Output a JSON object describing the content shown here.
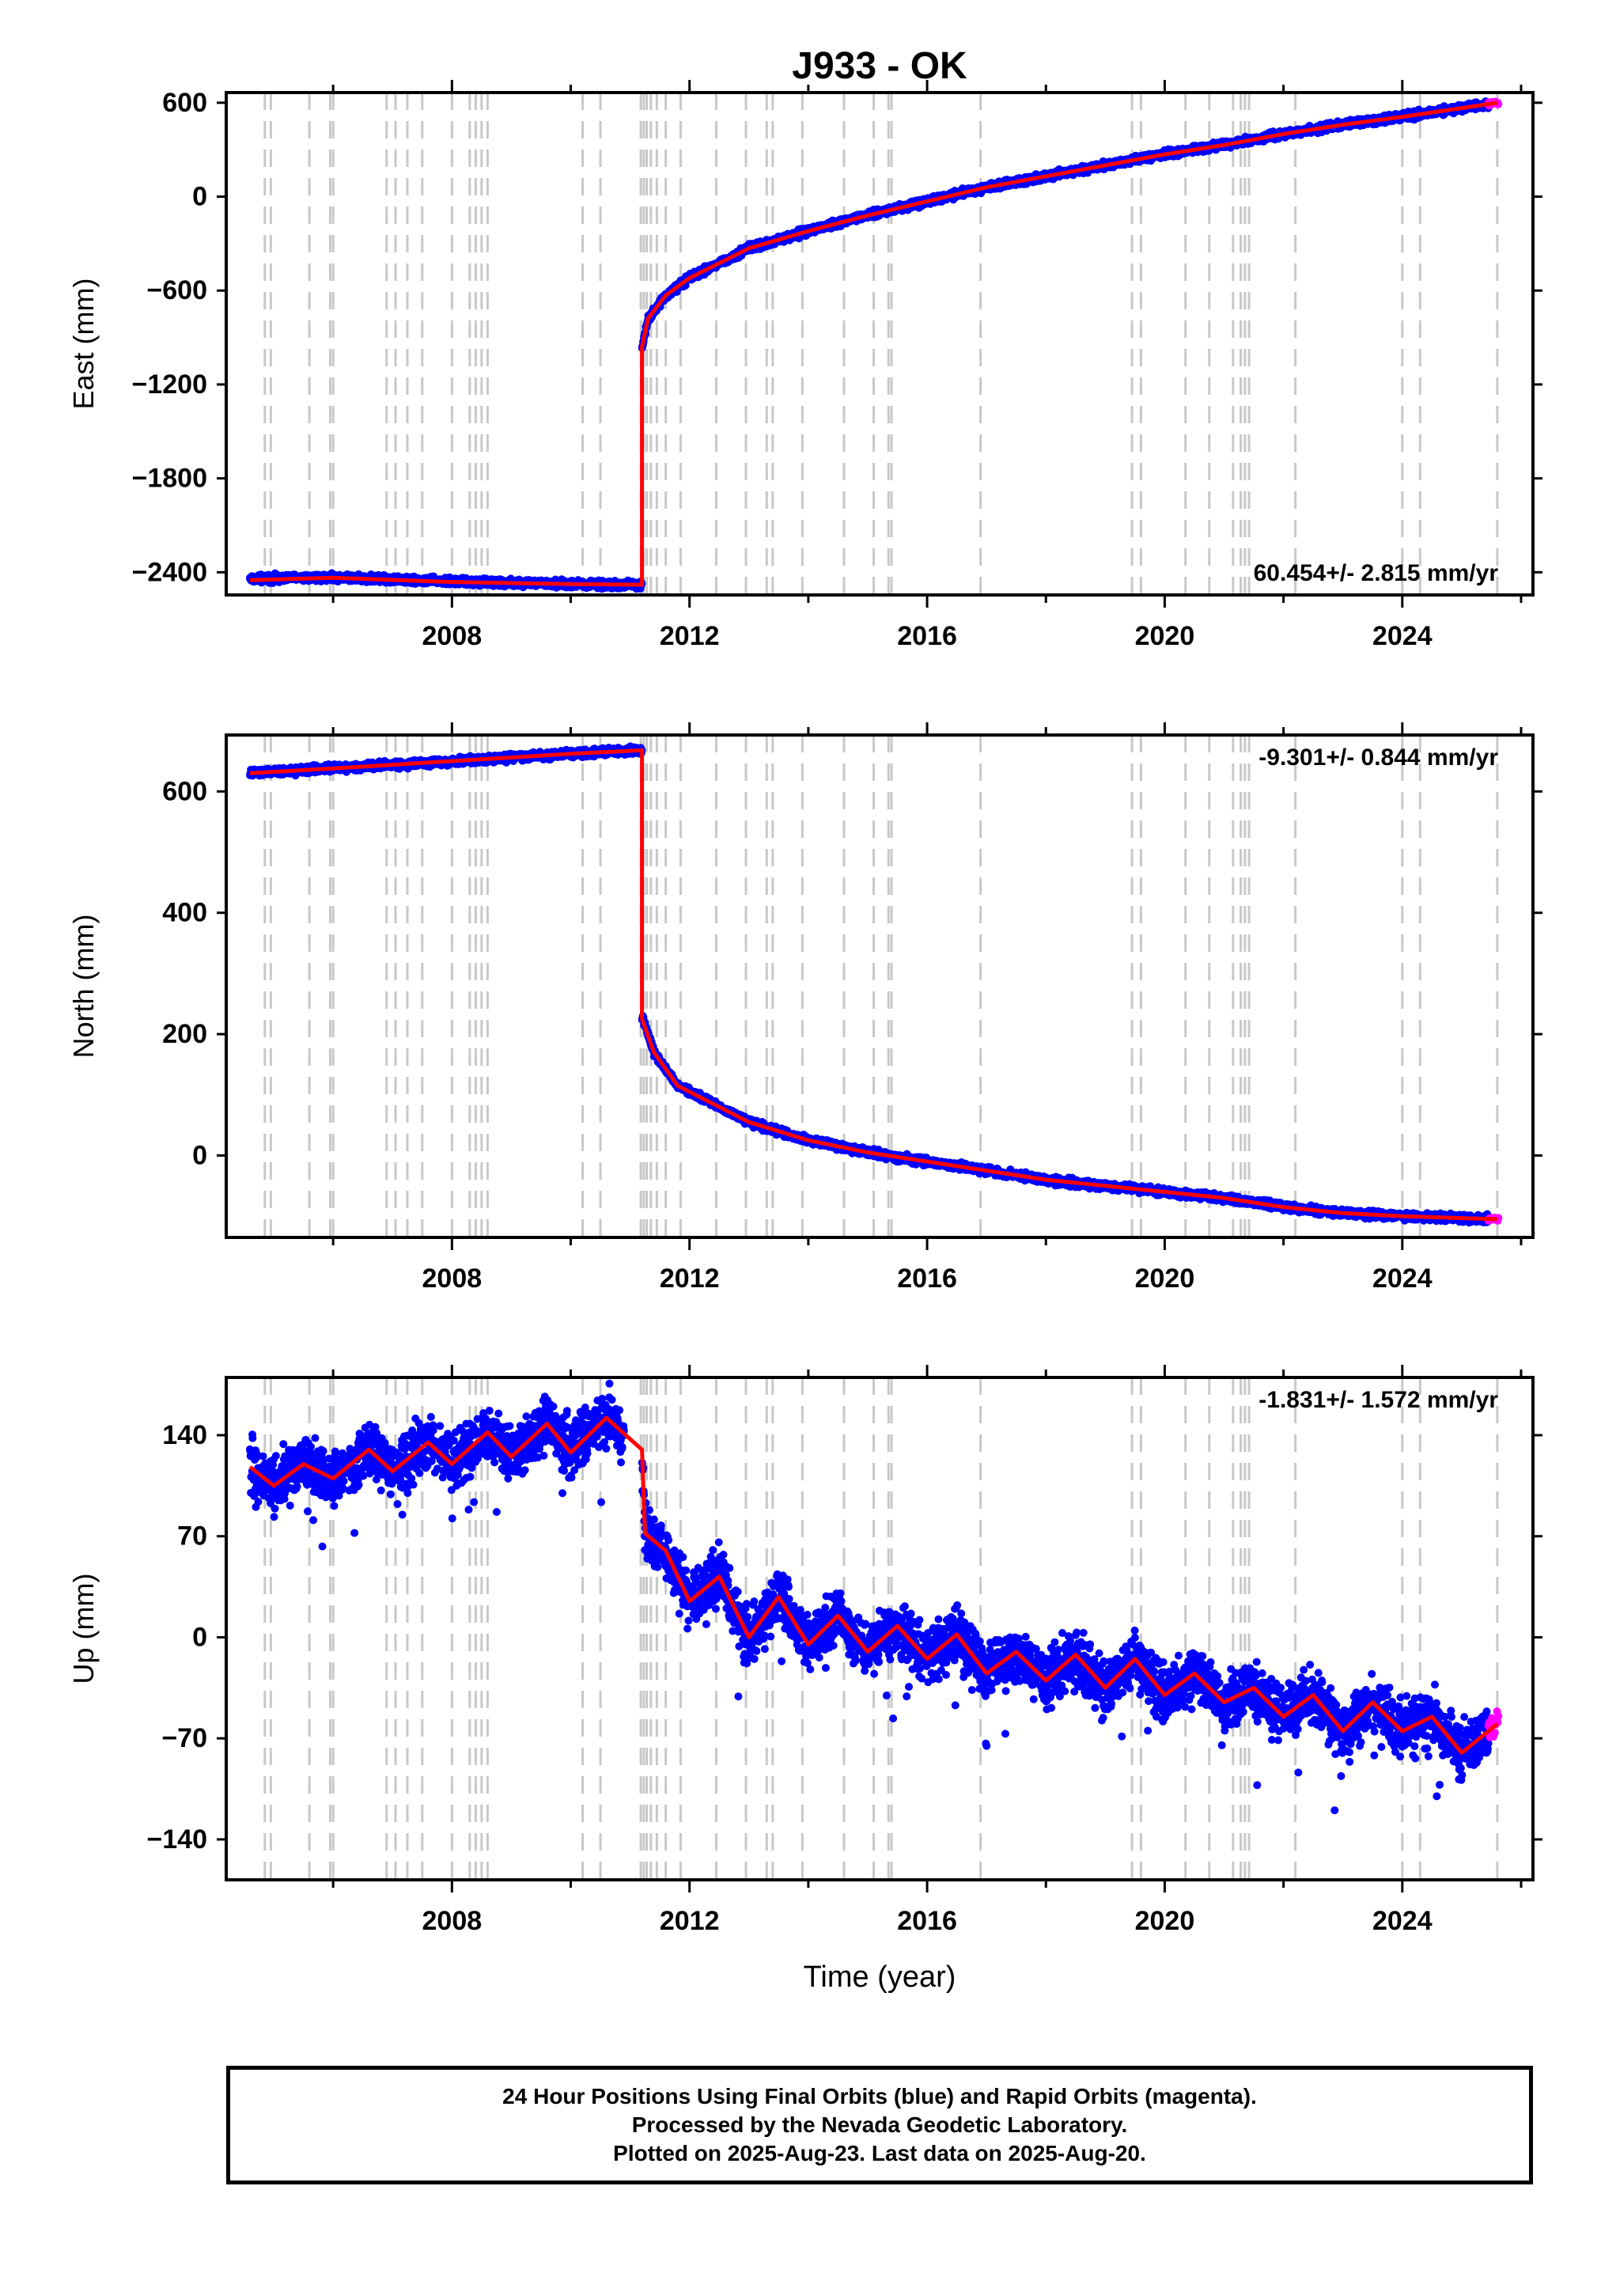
{
  "chart_data": [
    {
      "type": "scatter",
      "title": "J933 - OK",
      "xlabel": "",
      "ylabel": "East (mm)",
      "xlim": [
        2004.2,
        2026.2
      ],
      "ylim": [
        -2545,
        665
      ],
      "x_ticks": [
        "2008",
        "2012",
        "2016",
        "2020",
        "2024"
      ],
      "y_ticks": [
        "600",
        "0",
        "−600",
        "−1200",
        "−1800",
        "−2400"
      ],
      "y_tick_values": [
        600,
        0,
        -600,
        -1200,
        -1800,
        -2400
      ],
      "annotation": "60.454+/- 2.815 mm/yr",
      "series": [
        {
          "values": [
            [
              2004.6,
              -2440
            ],
            [
              2006.0,
              -2430
            ],
            [
              2008.0,
              -2460
            ],
            [
              2010.0,
              -2475
            ],
            [
              2011.2,
              -2480
            ],
            [
              2011.2,
              -970
            ],
            [
              2011.3,
              -780
            ],
            [
              2011.6,
              -630
            ],
            [
              2012.0,
              -520
            ],
            [
              2013.0,
              -330
            ],
            [
              2014.0,
              -220
            ],
            [
              2015.0,
              -120
            ],
            [
              2016.0,
              -30
            ],
            [
              2017.0,
              60
            ],
            [
              2018.0,
              130
            ],
            [
              2019.0,
              200
            ],
            [
              2020.0,
              270
            ],
            [
              2021.0,
              330
            ],
            [
              2022.0,
              400
            ],
            [
              2023.0,
              460
            ],
            [
              2024.0,
              510
            ],
            [
              2025.6,
              600
            ]
          ]
        },
        {
          "values": [
            [
              2004.6,
              -2450
            ],
            [
              2006.0,
              -2435
            ],
            [
              2008.0,
              -2462
            ],
            [
              2010.0,
              -2475
            ],
            [
              2011.2,
              -2480
            ],
            [
              2011.2,
              -960
            ],
            [
              2011.3,
              -780
            ],
            [
              2011.6,
              -630
            ],
            [
              2012.0,
              -520
            ],
            [
              2013.0,
              -330
            ],
            [
              2014.0,
              -220
            ],
            [
              2015.0,
              -120
            ],
            [
              2016.0,
              -30
            ],
            [
              2017.0,
              60
            ],
            [
              2018.0,
              130
            ],
            [
              2019.0,
              200
            ],
            [
              2020.0,
              270
            ],
            [
              2021.0,
              330
            ],
            [
              2022.0,
              400
            ],
            [
              2023.0,
              460
            ],
            [
              2024.0,
              510
            ],
            [
              2025.6,
              600
            ]
          ]
        }
      ],
      "series_colors": [
        "#0000ff",
        "#ff0000"
      ]
    },
    {
      "type": "scatter",
      "title": "",
      "xlabel": "",
      "ylabel": "North (mm)",
      "xlim": [
        2004.2,
        2026.2
      ],
      "ylim": [
        -135,
        693
      ],
      "x_ticks": [
        "2008",
        "2012",
        "2016",
        "2020",
        "2024"
      ],
      "y_ticks": [
        "600",
        "400",
        "200",
        "0"
      ],
      "y_tick_values": [
        600,
        400,
        200,
        0
      ],
      "annotation": "-9.301+/- 0.844 mm/yr",
      "series": [
        {
          "values": [
            [
              2004.6,
              630
            ],
            [
              2006.0,
              638
            ],
            [
              2008.0,
              650
            ],
            [
              2010.0,
              662
            ],
            [
              2011.2,
              668
            ],
            [
              2011.2,
              230
            ],
            [
              2011.4,
              170
            ],
            [
              2011.8,
              115
            ],
            [
              2012.5,
              80
            ],
            [
              2013.0,
              55
            ],
            [
              2014.0,
              25
            ],
            [
              2015.0,
              5
            ],
            [
              2016.0,
              -10
            ],
            [
              2017.0,
              -25
            ],
            [
              2018.0,
              -40
            ],
            [
              2019.0,
              -50
            ],
            [
              2020.0,
              -60
            ],
            [
              2021.0,
              -70
            ],
            [
              2022.0,
              -85
            ],
            [
              2023.0,
              -95
            ],
            [
              2024.0,
              -100
            ],
            [
              2025.6,
              -105
            ]
          ]
        },
        {
          "values": [
            [
              2004.6,
              630
            ],
            [
              2006.0,
              638
            ],
            [
              2008.0,
              650
            ],
            [
              2010.0,
              662
            ],
            [
              2011.2,
              668
            ],
            [
              2011.2,
              225
            ],
            [
              2011.4,
              170
            ],
            [
              2011.8,
              115
            ],
            [
              2012.5,
              80
            ],
            [
              2013.0,
              55
            ],
            [
              2014.0,
              25
            ],
            [
              2015.0,
              5
            ],
            [
              2016.0,
              -10
            ],
            [
              2017.0,
              -25
            ],
            [
              2018.0,
              -40
            ],
            [
              2019.0,
              -50
            ],
            [
              2020.0,
              -60
            ],
            [
              2021.0,
              -70
            ],
            [
              2022.0,
              -85
            ],
            [
              2023.0,
              -95
            ],
            [
              2024.0,
              -100
            ],
            [
              2025.6,
              -105
            ]
          ]
        }
      ],
      "series_colors": [
        "#0000ff",
        "#ff0000"
      ]
    },
    {
      "type": "scatter",
      "title": "",
      "xlabel": "Time (year)",
      "ylabel": "Up (mm)",
      "xlim": [
        2004.2,
        2026.2
      ],
      "ylim": [
        -168,
        180
      ],
      "x_ticks": [
        "2008",
        "2012",
        "2016",
        "2020",
        "2024"
      ],
      "y_ticks": [
        "140",
        "70",
        "0",
        "−70",
        "−140"
      ],
      "y_tick_values": [
        140,
        70,
        0,
        -70,
        -140
      ],
      "annotation": "-1.831+/- 1.572 mm/yr",
      "series": [
        {
          "values": [
            [
              2004.6,
              118
            ],
            [
              2005.0,
              105
            ],
            [
              2005.5,
              120
            ],
            [
              2006.0,
              110
            ],
            [
              2006.6,
              130
            ],
            [
              2007.0,
              115
            ],
            [
              2007.6,
              135
            ],
            [
              2008.0,
              120
            ],
            [
              2008.6,
              142
            ],
            [
              2009.0,
              125
            ],
            [
              2009.6,
              148
            ],
            [
              2010.0,
              128
            ],
            [
              2010.6,
              152
            ],
            [
              2011.2,
              130
            ],
            [
              2011.25,
              72
            ],
            [
              2011.6,
              60
            ],
            [
              2012.0,
              25
            ],
            [
              2012.5,
              42
            ],
            [
              2013.0,
              0
            ],
            [
              2013.5,
              28
            ],
            [
              2014.0,
              -5
            ],
            [
              2014.5,
              15
            ],
            [
              2015.0,
              -10
            ],
            [
              2015.5,
              8
            ],
            [
              2016.0,
              -15
            ],
            [
              2016.5,
              2
            ],
            [
              2017.0,
              -25
            ],
            [
              2017.5,
              -10
            ],
            [
              2018.0,
              -30
            ],
            [
              2018.5,
              -12
            ],
            [
              2019.0,
              -35
            ],
            [
              2019.5,
              -15
            ],
            [
              2020.0,
              -40
            ],
            [
              2020.5,
              -25
            ],
            [
              2021.0,
              -45
            ],
            [
              2021.5,
              -35
            ],
            [
              2022.0,
              -55
            ],
            [
              2022.5,
              -40
            ],
            [
              2023.0,
              -65
            ],
            [
              2023.5,
              -45
            ],
            [
              2024.0,
              -65
            ],
            [
              2024.5,
              -55
            ],
            [
              2025.0,
              -80
            ],
            [
              2025.6,
              -60
            ]
          ]
        },
        {
          "values": [
            [
              2004.6,
              118
            ],
            [
              2005.0,
              105
            ],
            [
              2005.5,
              120
            ],
            [
              2006.0,
              110
            ],
            [
              2006.6,
              130
            ],
            [
              2007.0,
              115
            ],
            [
              2007.6,
              135
            ],
            [
              2008.0,
              120
            ],
            [
              2008.6,
              142
            ],
            [
              2009.0,
              125
            ],
            [
              2009.6,
              148
            ],
            [
              2010.0,
              128
            ],
            [
              2010.6,
              152
            ],
            [
              2011.2,
              130
            ],
            [
              2011.25,
              72
            ],
            [
              2011.6,
              60
            ],
            [
              2012.0,
              25
            ],
            [
              2012.5,
              42
            ],
            [
              2013.0,
              0
            ],
            [
              2013.5,
              28
            ],
            [
              2014.0,
              -5
            ],
            [
              2014.5,
              15
            ],
            [
              2015.0,
              -10
            ],
            [
              2015.5,
              8
            ],
            [
              2016.0,
              -15
            ],
            [
              2016.5,
              2
            ],
            [
              2017.0,
              -25
            ],
            [
              2017.5,
              -10
            ],
            [
              2018.0,
              -30
            ],
            [
              2018.5,
              -12
            ],
            [
              2019.0,
              -35
            ],
            [
              2019.5,
              -15
            ],
            [
              2020.0,
              -40
            ],
            [
              2020.5,
              -25
            ],
            [
              2021.0,
              -45
            ],
            [
              2021.5,
              -35
            ],
            [
              2022.0,
              -55
            ],
            [
              2022.5,
              -40
            ],
            [
              2023.0,
              -65
            ],
            [
              2023.5,
              -45
            ],
            [
              2024.0,
              -65
            ],
            [
              2024.5,
              -55
            ],
            [
              2025.0,
              -80
            ],
            [
              2025.6,
              -60
            ]
          ]
        }
      ],
      "series_colors": [
        "#0000ff",
        "#ff0000"
      ]
    }
  ],
  "dashed_line_years": [
    2004.85,
    2004.95,
    2005.6,
    2005.95,
    2006.0,
    2006.9,
    2007.05,
    2007.25,
    2007.5,
    2008.0,
    2008.3,
    2008.4,
    2008.5,
    2008.6,
    2010.2,
    2010.5,
    2011.18,
    2011.23,
    2011.28,
    2011.35,
    2011.45,
    2011.6,
    2011.85,
    2012.45,
    2012.95,
    2013.3,
    2013.4,
    2013.9,
    2014.6,
    2015.1,
    2015.35,
    2015.4,
    2016.9,
    2019.45,
    2019.6,
    2020.35,
    2020.75,
    2021.15,
    2021.28,
    2021.35,
    2021.42,
    2022.2,
    2024.0,
    2024.3,
    2025.6
  ],
  "rapid_color": "#ff00ff",
  "grid_color": "#c8c8c8",
  "footer": {
    "line1": "24 Hour Positions Using Final Orbits (blue) and Rapid Orbits (magenta).",
    "line2": "Processed by the Nevada Geodetic Laboratory.",
    "line3": "Plotted on 2025-Aug-23. Last data on 2025-Aug-20."
  }
}
